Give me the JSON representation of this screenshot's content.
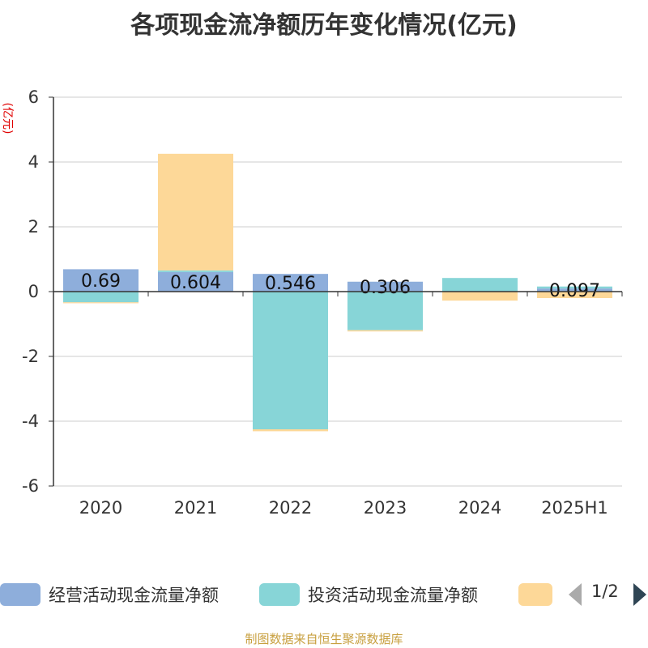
{
  "title": "各项现金流净额历年变化情况(亿元)",
  "y_unit": "(亿元)",
  "legend_page": "1/2",
  "source": "制图数据来自恒生聚源数据库",
  "colors": {
    "operating": "#8eaedb",
    "investing": "#87d5d7",
    "financing": "#fdd898",
    "grid": "#cccccc",
    "axis": "#333333"
  },
  "chart_data": {
    "type": "bar",
    "stacked": true,
    "categories": [
      "2020",
      "2021",
      "2022",
      "2023",
      "2024",
      "2025H1"
    ],
    "ylim": [
      -6,
      6
    ],
    "yticks": [
      6,
      4,
      2,
      0,
      -2,
      -4,
      -6
    ],
    "series": [
      {
        "name": "经营活动现金流量净额",
        "color_key": "operating",
        "values": [
          0.69,
          0.604,
          0.546,
          0.306,
          -0.008,
          0.097
        ],
        "labels": [
          "0.69",
          "0.604",
          "0.546",
          "0.306",
          "",
          "0.097"
        ]
      },
      {
        "name": "投资活动现金流量净额",
        "color_key": "investing",
        "values": [
          -0.33,
          0.05,
          -4.25,
          -1.19,
          0.42,
          0.06
        ]
      },
      {
        "name": "",
        "color_key": "financing",
        "values": [
          -0.03,
          3.6,
          -0.06,
          -0.04,
          -0.27,
          -0.2
        ]
      }
    ]
  }
}
